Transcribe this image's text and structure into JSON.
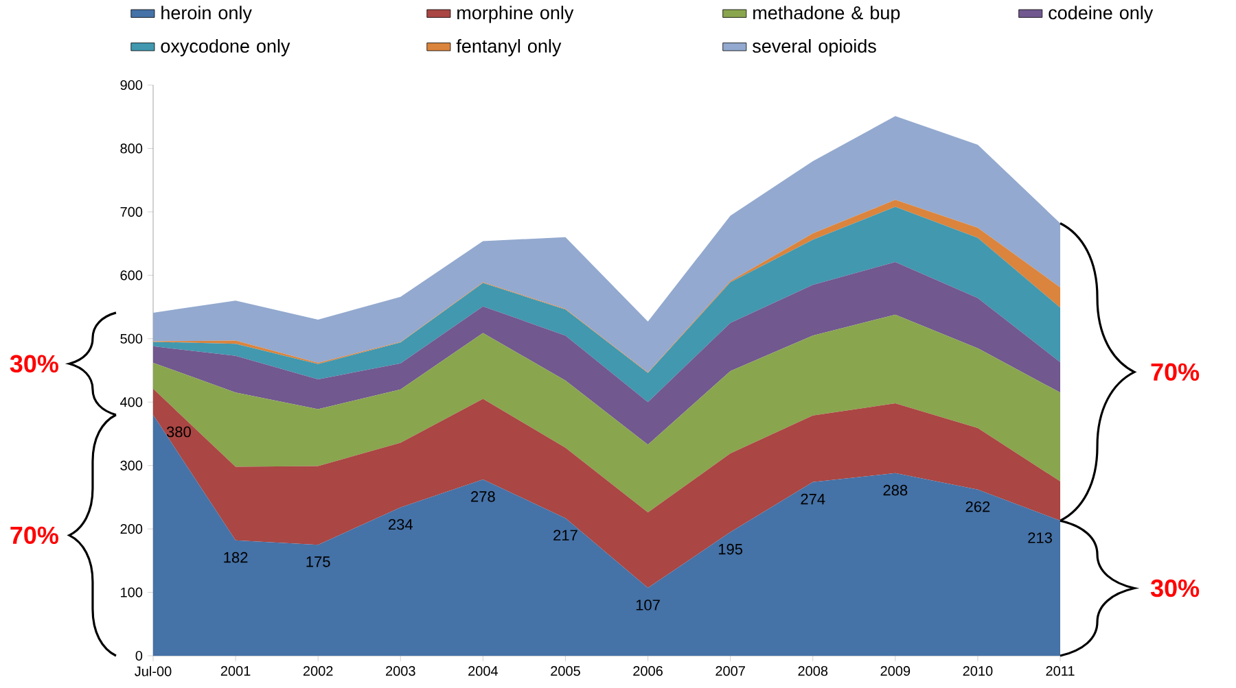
{
  "chart_data": {
    "type": "area",
    "stacked": true,
    "categories": [
      "Jul-00",
      "2001",
      "2002",
      "2003",
      "2004",
      "2005",
      "2006",
      "2007",
      "2008",
      "2009",
      "2010",
      "2011"
    ],
    "series": [
      {
        "name": "heroin only",
        "color": "#4572a7",
        "values": [
          380,
          182,
          175,
          234,
          278,
          217,
          107,
          195,
          274,
          288,
          262,
          213
        ],
        "value_labels": [
          "380",
          "182",
          "175",
          "234",
          "278",
          "217",
          "107",
          "195",
          "274",
          "288",
          "262",
          "213"
        ]
      },
      {
        "name": "morphine only",
        "color": "#aa4643",
        "values": [
          41,
          116,
          124,
          102,
          127,
          111,
          119,
          124,
          105,
          110,
          97,
          62
        ]
      },
      {
        "name": "methadone & bup",
        "color": "#89a54e",
        "values": [
          41,
          117,
          90,
          84,
          104,
          106,
          107,
          130,
          126,
          140,
          126,
          140
        ]
      },
      {
        "name": "codeine only",
        "color": "#71588f",
        "values": [
          26,
          58,
          47,
          41,
          42,
          71,
          67,
          76,
          80,
          83,
          79,
          48
        ]
      },
      {
        "name": "oxycodone only",
        "color": "#4198af",
        "values": [
          7,
          19,
          24,
          33,
          37,
          41,
          46,
          64,
          71,
          87,
          95,
          86
        ]
      },
      {
        "name": "fentanyl only",
        "color": "#db843d",
        "values": [
          1,
          5,
          2,
          1,
          1,
          1,
          1,
          2,
          10,
          11,
          16,
          32
        ]
      },
      {
        "name": "several opioids",
        "color": "#93a9cf",
        "values": [
          45,
          63,
          68,
          71,
          65,
          113,
          80,
          103,
          114,
          132,
          131,
          101
        ]
      }
    ],
    "ylim": [
      0,
      900
    ],
    "yticks": [
      0,
      100,
      200,
      300,
      400,
      500,
      600,
      700,
      800,
      900
    ],
    "legend": "top",
    "annotations": [
      "30%",
      "70%",
      "70%",
      "30%"
    ]
  }
}
